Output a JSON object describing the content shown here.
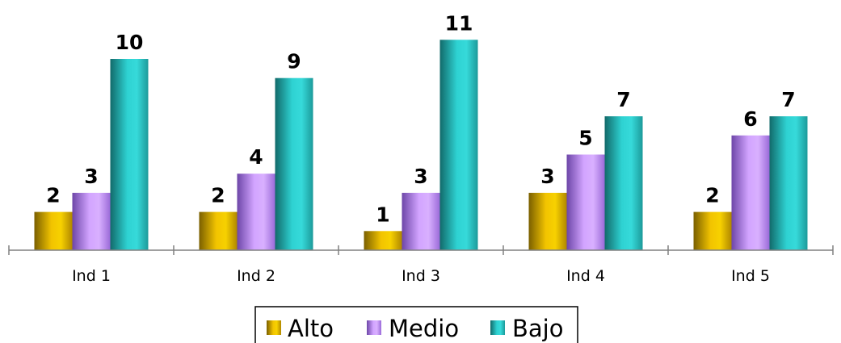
{
  "chart_data": {
    "type": "bar",
    "title": "",
    "xlabel": "",
    "ylabel": "",
    "categories": [
      "Ind 1",
      "Ind 2",
      "Ind 3",
      "Ind 4",
      "Ind 5"
    ],
    "series": [
      {
        "name": "Alto",
        "values": [
          2,
          2,
          1,
          3,
          2
        ],
        "color": "#e2b100"
      },
      {
        "name": "Medio",
        "values": [
          3,
          4,
          3,
          5,
          6
        ],
        "color": "#c48dff"
      },
      {
        "name": "Bajo",
        "values": [
          10,
          9,
          11,
          7,
          7
        ],
        "color": "#2ac6c6"
      }
    ],
    "ylim": [
      0,
      11
    ],
    "grid": false,
    "legend": "bottom",
    "data_labels": true
  }
}
